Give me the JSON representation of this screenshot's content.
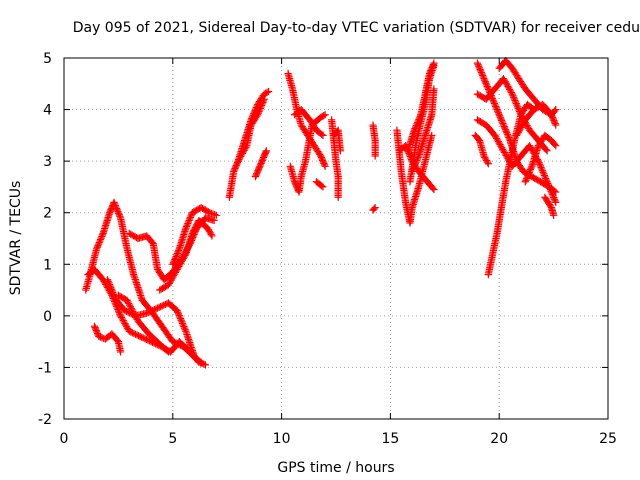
{
  "chart_data": {
    "type": "scatter",
    "title": "Day 095 of 2021, Sidereal Day-to-day VTEC variation (SDTVAR) for receiver cedu",
    "xlabel": "GPS time / hours",
    "ylabel": "SDTVAR / TECUs",
    "xlim": [
      0,
      25
    ],
    "ylim": [
      -2,
      5
    ],
    "xticks": [
      "0",
      "5",
      "10",
      "15",
      "20",
      "25"
    ],
    "yticks": [
      "-2",
      "-1",
      "0",
      "1",
      "2",
      "3",
      "4",
      "5"
    ],
    "grid": true,
    "marker": "plus",
    "color": "#ff0000",
    "series": [
      {
        "tracks": [
          [
            [
              1.0,
              0.5
            ],
            [
              1.2,
              0.8
            ],
            [
              1.5,
              1.3
            ],
            [
              1.8,
              1.6
            ],
            [
              2.1,
              2.0
            ],
            [
              2.3,
              2.2
            ],
            [
              2.6,
              1.9
            ],
            [
              2.9,
              1.3
            ],
            [
              3.2,
              0.8
            ],
            [
              3.6,
              0.3
            ],
            [
              4.0,
              0.1
            ],
            [
              4.5,
              -0.2
            ],
            [
              5.0,
              -0.5
            ],
            [
              5.5,
              -0.6
            ],
            [
              6.0,
              -0.8
            ],
            [
              6.3,
              -0.9
            ]
          ],
          [
            [
              1.1,
              0.8
            ],
            [
              1.4,
              0.9
            ],
            [
              1.8,
              0.7
            ],
            [
              2.2,
              0.4
            ],
            [
              2.6,
              0.0
            ],
            [
              3.0,
              -0.3
            ],
            [
              3.5,
              -0.4
            ],
            [
              4.0,
              -0.5
            ],
            [
              4.5,
              -0.6
            ],
            [
              4.9,
              -0.7
            ],
            [
              5.3,
              -0.5
            ],
            [
              5.8,
              -0.7
            ],
            [
              6.2,
              -0.9
            ],
            [
              6.5,
              -0.95
            ]
          ],
          [
            [
              1.4,
              -0.2
            ],
            [
              1.6,
              -0.4
            ],
            [
              1.9,
              -0.45
            ],
            [
              2.2,
              -0.35
            ],
            [
              2.5,
              -0.5
            ],
            [
              2.6,
              -0.7
            ]
          ],
          [
            [
              2.0,
              0.7
            ],
            [
              2.4,
              0.3
            ],
            [
              2.8,
              0.1
            ],
            [
              3.3,
              0.0
            ],
            [
              3.8,
              0.05
            ],
            [
              4.3,
              0.15
            ],
            [
              4.8,
              0.25
            ],
            [
              5.2,
              0.1
            ],
            [
              5.6,
              -0.3
            ],
            [
              6.0,
              -0.8
            ]
          ],
          [
            [
              2.5,
              0.4
            ],
            [
              2.9,
              0.3
            ],
            [
              3.4,
              -0.1
            ],
            [
              3.9,
              -0.35
            ],
            [
              4.4,
              -0.55
            ],
            [
              4.8,
              -0.7
            ]
          ],
          [
            [
              3.0,
              1.6
            ],
            [
              3.4,
              1.5
            ],
            [
              3.8,
              1.55
            ],
            [
              4.1,
              1.4
            ],
            [
              4.3,
              0.9
            ],
            [
              4.6,
              0.7
            ],
            [
              5.0,
              0.85
            ],
            [
              5.4,
              1.1
            ],
            [
              5.8,
              1.4
            ],
            [
              6.1,
              1.7
            ],
            [
              6.5,
              1.9
            ],
            [
              6.9,
              1.85
            ]
          ],
          [
            [
              4.4,
              0.5
            ],
            [
              4.8,
              0.6
            ],
            [
              5.2,
              0.9
            ],
            [
              5.6,
              1.2
            ],
            [
              5.9,
              1.6
            ],
            [
              6.2,
              1.85
            ],
            [
              6.6,
              1.7
            ],
            [
              6.8,
              1.55
            ]
          ],
          [
            [
              5.0,
              1.0
            ],
            [
              5.3,
              1.3
            ],
            [
              5.6,
              1.7
            ],
            [
              5.9,
              2.0
            ],
            [
              6.3,
              2.1
            ],
            [
              6.7,
              2.0
            ],
            [
              7.0,
              1.95
            ]
          ]
        ]
      },
      {
        "tracks": [
          [
            [
              7.6,
              2.3
            ],
            [
              7.8,
              2.8
            ],
            [
              8.0,
              3.0
            ],
            [
              8.3,
              3.4
            ],
            [
              8.6,
              3.8
            ],
            [
              8.9,
              4.1
            ],
            [
              9.2,
              4.3
            ],
            [
              9.4,
              4.35
            ]
          ],
          [
            [
              8.0,
              3.0
            ],
            [
              8.4,
              3.3
            ],
            [
              8.6,
              3.7
            ],
            [
              8.9,
              3.9
            ],
            [
              9.2,
              4.2
            ]
          ],
          [
            [
              8.8,
              2.7
            ],
            [
              9.0,
              2.9
            ],
            [
              9.2,
              3.1
            ],
            [
              9.3,
              3.2
            ]
          ],
          [
            [
              10.3,
              4.7
            ],
            [
              10.5,
              4.4
            ],
            [
              10.7,
              4.0
            ],
            [
              10.9,
              3.7
            ],
            [
              11.2,
              3.5
            ],
            [
              11.5,
              3.3
            ],
            [
              11.8,
              3.1
            ],
            [
              12.0,
              2.9
            ]
          ],
          [
            [
              10.4,
              2.9
            ],
            [
              10.6,
              2.6
            ],
            [
              10.8,
              2.4
            ],
            [
              10.9,
              2.7
            ],
            [
              11.1,
              3.0
            ],
            [
              11.4,
              3.7
            ],
            [
              11.8,
              3.85
            ],
            [
              12.0,
              3.9
            ]
          ],
          [
            [
              10.6,
              3.9
            ],
            [
              10.9,
              4.0
            ],
            [
              11.3,
              3.8
            ],
            [
              11.6,
              3.6
            ],
            [
              11.9,
              3.5
            ]
          ],
          [
            [
              11.6,
              2.6
            ],
            [
              11.9,
              2.5
            ]
          ],
          [
            [
              12.3,
              3.8
            ],
            [
              12.4,
              3.4
            ],
            [
              12.5,
              3.0
            ],
            [
              12.6,
              2.7
            ],
            [
              12.6,
              2.3
            ]
          ],
          [
            [
              12.4,
              3.5
            ],
            [
              12.6,
              3.6
            ],
            [
              12.7,
              3.2
            ]
          ],
          [
            [
              14.2,
              3.7
            ],
            [
              14.3,
              3.4
            ],
            [
              14.3,
              3.1
            ]
          ],
          [
            [
              14.2,
              2.05
            ],
            [
              14.3,
              2.1
            ]
          ]
        ]
      },
      {
        "tracks": [
          [
            [
              15.3,
              3.6
            ],
            [
              15.5,
              2.8
            ],
            [
              15.7,
              2.2
            ],
            [
              15.9,
              1.8
            ],
            [
              16.0,
              2.1
            ],
            [
              16.3,
              2.5
            ],
            [
              16.6,
              3.0
            ],
            [
              16.9,
              3.5
            ]
          ],
          [
            [
              15.4,
              3.2
            ],
            [
              15.7,
              3.3
            ],
            [
              16.0,
              3.0
            ],
            [
              16.3,
              2.8
            ],
            [
              16.7,
              2.6
            ],
            [
              17.0,
              2.45
            ]
          ],
          [
            [
              15.8,
              3.2
            ],
            [
              16.1,
              3.6
            ],
            [
              16.4,
              3.9
            ],
            [
              16.6,
              4.3
            ],
            [
              16.8,
              4.7
            ],
            [
              17.0,
              4.9
            ]
          ],
          [
            [
              16.0,
              2.8
            ],
            [
              16.3,
              3.1
            ],
            [
              16.6,
              3.5
            ],
            [
              16.9,
              3.9
            ],
            [
              17.0,
              4.4
            ]
          ],
          [
            [
              15.9,
              2.6
            ],
            [
              16.2,
              3.4
            ],
            [
              16.6,
              4.1
            ],
            [
              16.8,
              4.6
            ],
            [
              17.0,
              4.85
            ]
          ],
          [
            [
              19.0,
              4.9
            ],
            [
              19.3,
              4.6
            ],
            [
              19.6,
              4.3
            ],
            [
              19.9,
              4.0
            ],
            [
              20.2,
              3.7
            ],
            [
              20.5,
              3.4
            ],
            [
              20.8,
              3.0
            ],
            [
              21.1,
              2.8
            ],
            [
              21.5,
              2.7
            ],
            [
              21.9,
              2.6
            ],
            [
              22.3,
              2.5
            ],
            [
              22.6,
              2.4
            ]
          ],
          [
            [
              18.9,
              3.5
            ],
            [
              19.1,
              3.4
            ],
            [
              19.3,
              3.1
            ],
            [
              19.5,
              2.95
            ]
          ],
          [
            [
              19.0,
              3.8
            ],
            [
              19.4,
              3.7
            ],
            [
              19.8,
              3.5
            ],
            [
              20.2,
              3.2
            ],
            [
              20.6,
              2.9
            ],
            [
              21.0,
              3.1
            ],
            [
              21.4,
              3.3
            ],
            [
              21.8,
              3.0
            ],
            [
              22.2,
              2.6
            ],
            [
              22.6,
              2.2
            ]
          ],
          [
            [
              19.0,
              4.3
            ],
            [
              19.4,
              4.2
            ],
            [
              19.8,
              4.4
            ],
            [
              20.2,
              4.6
            ],
            [
              20.6,
              4.3
            ],
            [
              21.0,
              3.9
            ],
            [
              21.4,
              3.6
            ],
            [
              21.8,
              3.4
            ],
            [
              22.2,
              3.2
            ]
          ],
          [
            [
              20.0,
              4.8
            ],
            [
              20.3,
              4.95
            ],
            [
              20.6,
              4.8
            ],
            [
              20.9,
              4.6
            ],
            [
              21.2,
              4.4
            ],
            [
              21.6,
              4.2
            ],
            [
              22.0,
              4.0
            ],
            [
              22.4,
              3.9
            ],
            [
              22.6,
              4.0
            ]
          ],
          [
            [
              19.5,
              0.8
            ],
            [
              19.7,
              1.2
            ],
            [
              19.9,
              1.6
            ],
            [
              20.1,
              2.1
            ],
            [
              20.3,
              2.6
            ],
            [
              20.5,
              3.0
            ],
            [
              20.7,
              3.4
            ],
            [
              21.0,
              3.9
            ],
            [
              21.3,
              4.1
            ],
            [
              21.6,
              4.0
            ]
          ],
          [
            [
              20.8,
              3.5
            ],
            [
              21.2,
              3.8
            ],
            [
              21.6,
              4.0
            ],
            [
              22.0,
              4.1
            ],
            [
              22.4,
              3.9
            ],
            [
              22.6,
              3.7
            ]
          ],
          [
            [
              21.2,
              2.6
            ],
            [
              21.5,
              2.9
            ],
            [
              21.8,
              3.3
            ],
            [
              22.1,
              3.5
            ],
            [
              22.4,
              3.4
            ],
            [
              22.6,
              3.3
            ]
          ],
          [
            [
              22.1,
              2.3
            ],
            [
              22.4,
              2.1
            ],
            [
              22.5,
              1.95
            ]
          ]
        ]
      }
    ]
  }
}
